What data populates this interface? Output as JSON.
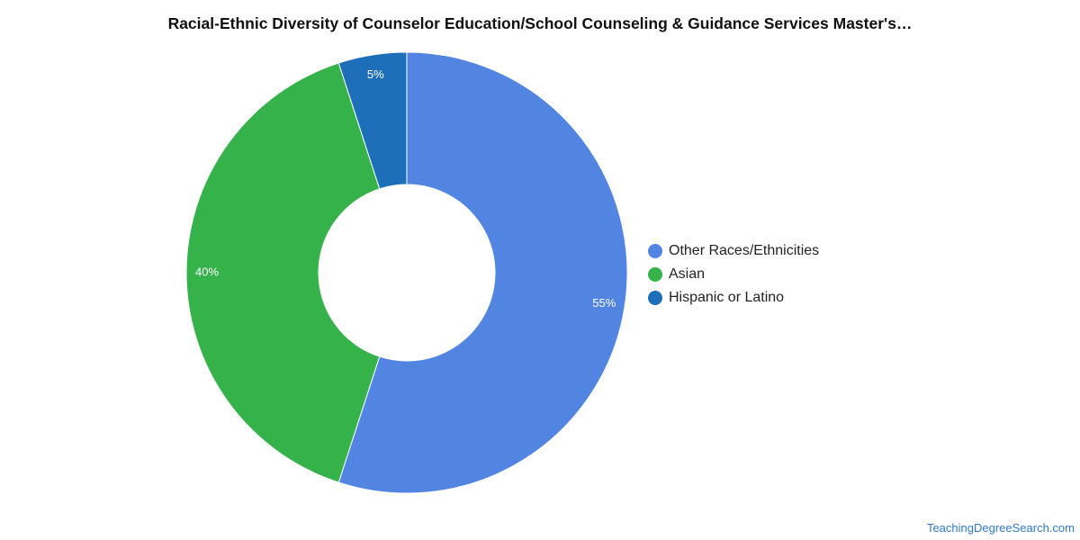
{
  "chart_data": {
    "type": "pie",
    "donut": true,
    "title": "Racial-Ethnic Diversity of Counselor Education/School Counseling & Guidance Services Master's…",
    "slices": [
      {
        "label": "Other Races/Ethnicities",
        "value": 55,
        "value_label": "55%",
        "color": "#5285e2"
      },
      {
        "label": "Asian",
        "value": 40,
        "value_label": "40%",
        "color": "#35b34a"
      },
      {
        "label": "Hispanic or Latino",
        "value": 5,
        "value_label": "5%",
        "color": "#1e6fba"
      }
    ],
    "legend_position": "right",
    "start_angle": "top",
    "direction": "clockwise"
  },
  "source": {
    "text": "TeachingDegreeSearch.com"
  }
}
